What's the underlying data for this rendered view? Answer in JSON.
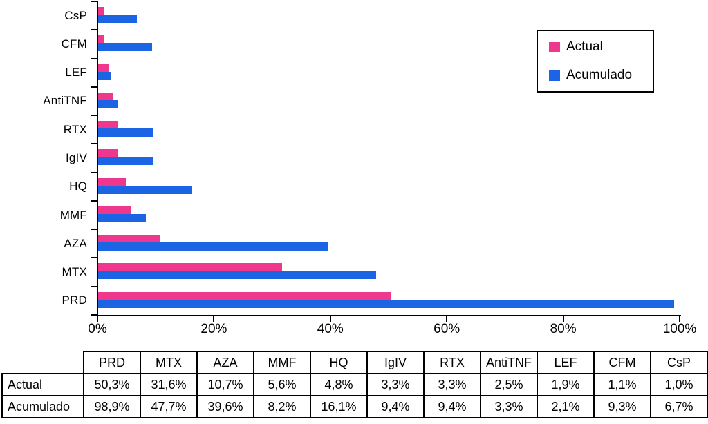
{
  "chart_data": {
    "type": "bar",
    "orientation": "horizontal",
    "title": "",
    "xlabel": "",
    "ylabel": "",
    "xlim": [
      0,
      100
    ],
    "grid": false,
    "legend_position": "top-right",
    "categories": [
      "CsP",
      "CFM",
      "LEF",
      "AntiTNF",
      "RTX",
      "IgIV",
      "HQ",
      "MMF",
      "AZA",
      "MTX",
      "PRD"
    ],
    "series": [
      {
        "name": "Actual",
        "color": "#ee378d",
        "values": [
          1.0,
          1.1,
          1.9,
          2.5,
          3.3,
          3.3,
          4.8,
          5.6,
          10.7,
          31.6,
          50.3
        ]
      },
      {
        "name": "Acumulado",
        "color": "#1b64e4",
        "values": [
          6.7,
          9.3,
          2.1,
          3.3,
          9.4,
          9.4,
          16.1,
          8.2,
          39.6,
          47.7,
          98.9
        ]
      }
    ],
    "x_ticks": [
      {
        "value": 0,
        "label": "0%"
      },
      {
        "value": 20,
        "label": "20%"
      },
      {
        "value": 40,
        "label": "40%"
      },
      {
        "value": 60,
        "label": "60%"
      },
      {
        "value": 80,
        "label": "80%"
      },
      {
        "value": 100,
        "label": "100%"
      }
    ]
  },
  "legend": {
    "items": [
      {
        "label": "Actual",
        "color": "#ee378d"
      },
      {
        "label": "Acumulado",
        "color": "#1b64e4"
      }
    ]
  },
  "table": {
    "corner_label": "",
    "columns": [
      "PRD",
      "MTX",
      "AZA",
      "MMF",
      "HQ",
      "IgIV",
      "RTX",
      "AntiTNF",
      "LEF",
      "CFM",
      "CsP"
    ],
    "rows": [
      {
        "label": "Actual",
        "values": [
          "50,3%",
          "31,6%",
          "10,7%",
          "5,6%",
          "4,8%",
          "3,3%",
          "3,3%",
          "2,5%",
          "1,9%",
          "1,1%",
          "1,0%"
        ]
      },
      {
        "label": "Acumulado",
        "values": [
          "98,9%",
          "47,7%",
          "39,6%",
          "8,2%",
          "16,1%",
          "9,4%",
          "9,4%",
          "3,3%",
          "2,1%",
          "9,3%",
          "6,7%"
        ]
      }
    ]
  }
}
